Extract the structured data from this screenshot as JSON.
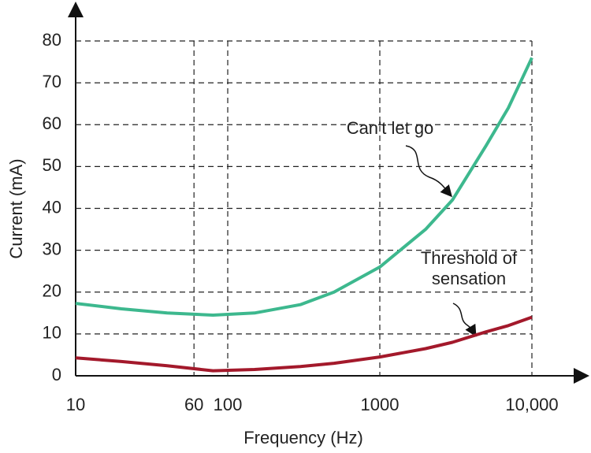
{
  "chart_data": {
    "type": "line",
    "x_label": "Frequency (Hz)",
    "y_label": "Current (mA)",
    "x": [
      10,
      20,
      40,
      80,
      150,
      300,
      500,
      1000,
      2000,
      3000,
      5000,
      7000,
      10000
    ],
    "series": [
      {
        "name": "Can't let go",
        "color": "#3db88e",
        "values": [
          17.3,
          16,
          15,
          14.5,
          15,
          17,
          20,
          26,
          35,
          42,
          55,
          64,
          76
        ]
      },
      {
        "name": "Threshold of sensation",
        "color": "#a3192b",
        "values": [
          4.3,
          3.4,
          2.4,
          1.2,
          1.5,
          2.2,
          3,
          4.5,
          6.5,
          8,
          10.5,
          12,
          14
        ]
      }
    ],
    "xscale": "log",
    "xlim": [
      10,
      10000
    ],
    "ylim": [
      0,
      80
    ],
    "xticks": [
      10,
      60,
      100,
      1000,
      {
        "value": 10000,
        "label": "10,000"
      }
    ],
    "yticks": [
      0,
      10,
      20,
      30,
      40,
      50,
      60,
      70,
      80
    ],
    "grid": true
  }
}
